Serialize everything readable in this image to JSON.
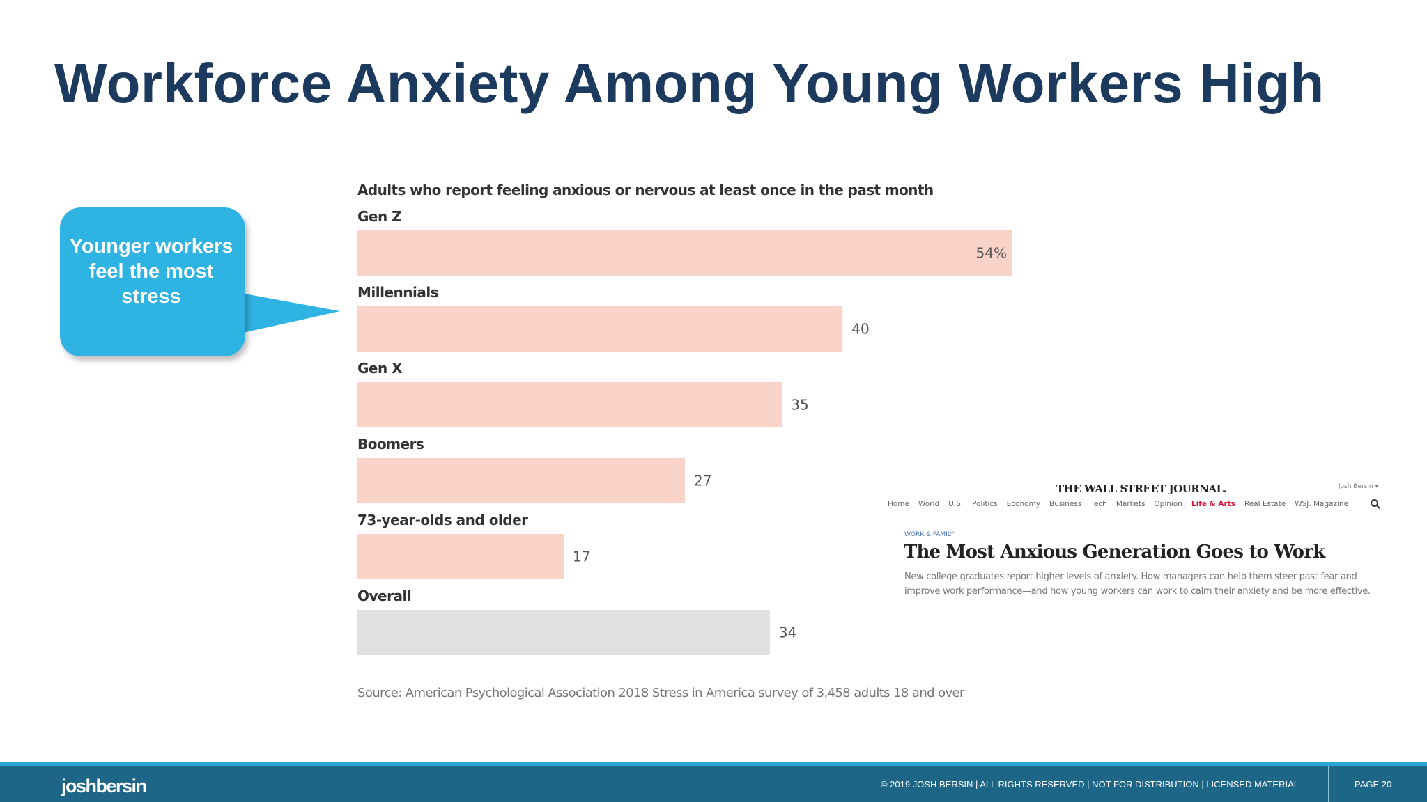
{
  "slide": {
    "title": "Workforce Anxiety Among Young Workers High",
    "callout_text": "Younger workers feel the most stress"
  },
  "chart_data": {
    "type": "bar",
    "orientation": "horizontal",
    "title": "Adults who report feeling anxious or nervous at least once in the past month",
    "categories": [
      "Gen Z",
      "Millennials",
      "Gen X",
      "Boomers",
      "73-year-olds and older",
      "Overall"
    ],
    "values": [
      54,
      40,
      35,
      27,
      17,
      34
    ],
    "value_labels": [
      "54%",
      "40",
      "35",
      "27",
      "17",
      "34"
    ],
    "unit": "%",
    "xlim": [
      0,
      54
    ],
    "colors": [
      "#f9d3c8",
      "#f9d3c8",
      "#f9d3c8",
      "#f9d3c8",
      "#f9d3c8",
      "#e0e0e2"
    ],
    "source": "Source: American Psychological Association 2018 Stress in America survey of 3,458 adults 18 and over",
    "grid": false,
    "legend": "none"
  },
  "wsj": {
    "masthead": "THE WALL STREET JOURNAL.",
    "user": "Josh Bersin ▾",
    "nav": [
      "Home",
      "World",
      "U.S.",
      "Politics",
      "Economy",
      "Business",
      "Tech",
      "Markets",
      "Opinion",
      "Life & Arts",
      "Real Estate",
      "WSJ. Magazine"
    ],
    "active_nav": "Life & Arts",
    "section": "WORK & FAMILY",
    "headline": "The Most Anxious Generation Goes to Work",
    "dek": "New college graduates report higher levels of anxiety. How managers can help them steer past fear and improve work performance—and how young workers can work to calm their anxiety and be more effective."
  },
  "footer": {
    "logo": "joshbersin",
    "copyright": "© 2019 JOSH BERSIN | ALL RIGHTS RESERVED | NOT FOR DISTRIBUTION | LICENSED MATERIAL",
    "page": "PAGE  20"
  },
  "colors": {
    "title": "#1b3a5e",
    "callout": "#2fb3e3",
    "footer": "#1d6688",
    "footer_stripe": "#2aa6d2",
    "bar": "#f9d3c8",
    "overall_bar": "#e0e0e2"
  }
}
